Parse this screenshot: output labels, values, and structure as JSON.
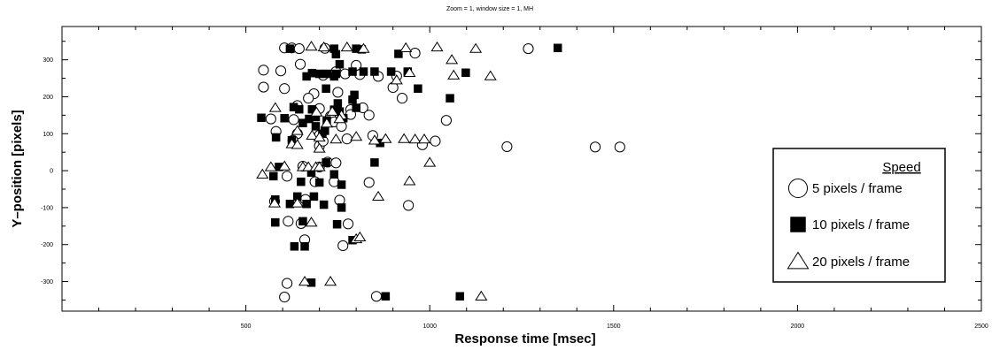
{
  "chart_data": {
    "type": "scatter",
    "title": "Zoom = 1, window size = 1, MH",
    "xlabel": "Response time [msec]",
    "ylabel": "Y–position [pixels]",
    "xlim": [
      0,
      2500
    ],
    "ylim": [
      -380,
      390
    ],
    "x_tick_labels": [
      "500",
      "1000",
      "1500",
      "2000",
      "2500"
    ],
    "y_tick_labels": [
      "-300",
      "-200",
      "-100",
      "0",
      "100",
      "200",
      "300"
    ],
    "legend_title": "Speed",
    "legend_placement": "right",
    "series": [
      {
        "name": "5 pixels / frame",
        "marker": "circle",
        "points": [
          [
            605,
            332
          ],
          [
            625,
            332
          ],
          [
            645,
            330
          ],
          [
            715,
            331
          ],
          [
            1268,
            330
          ],
          [
            960,
            318
          ],
          [
            548,
            272
          ],
          [
            595,
            270
          ],
          [
            745,
            268
          ],
          [
            770,
            262
          ],
          [
            810,
            260
          ],
          [
            860,
            255
          ],
          [
            710,
            258
          ],
          [
            648,
            288
          ],
          [
            548,
            226
          ],
          [
            605,
            222
          ],
          [
            685,
            208
          ],
          [
            670,
            196
          ],
          [
            750,
            212
          ],
          [
            900,
            225
          ],
          [
            910,
            256
          ],
          [
            800,
            285
          ],
          [
            640,
            176
          ],
          [
            700,
            168
          ],
          [
            785,
            165
          ],
          [
            818,
            170
          ],
          [
            568,
            140
          ],
          [
            630,
            138
          ],
          [
            730,
            147
          ],
          [
            785,
            152
          ],
          [
            740,
            132
          ],
          [
            760,
            120
          ],
          [
            1045,
            136
          ],
          [
            925,
            196
          ],
          [
            835,
            150
          ],
          [
            582,
            106
          ],
          [
            640,
            100
          ],
          [
            700,
            96
          ],
          [
            775,
            86
          ],
          [
            845,
            95
          ],
          [
            1015,
            80
          ],
          [
            980,
            70
          ],
          [
            1210,
            65
          ],
          [
            1450,
            64
          ],
          [
            1517,
            64
          ],
          [
            628,
            82
          ],
          [
            700,
            67
          ],
          [
            710,
            80
          ],
          [
            722,
            23
          ],
          [
            655,
            12
          ],
          [
            700,
            10
          ],
          [
            612,
            -15
          ],
          [
            745,
            21
          ],
          [
            688,
            -30
          ],
          [
            740,
            -30
          ],
          [
            835,
            -32
          ],
          [
            942,
            -94
          ],
          [
            578,
            -83
          ],
          [
            662,
            -78
          ],
          [
            755,
            -80
          ],
          [
            615,
            -137
          ],
          [
            650,
            -143
          ],
          [
            778,
            -144
          ],
          [
            660,
            -187
          ],
          [
            764,
            -203
          ],
          [
            612,
            -305
          ],
          [
            855,
            -340
          ],
          [
            605,
            -342
          ]
        ]
      },
      {
        "name": "10 pixels / frame",
        "marker": "square",
        "points": [
          [
            1348,
            332
          ],
          [
            620,
            330
          ],
          [
            740,
            330
          ],
          [
            800,
            330
          ],
          [
            815,
            328
          ],
          [
            745,
            315
          ],
          [
            915,
            316
          ],
          [
            755,
            288
          ],
          [
            680,
            264
          ],
          [
            700,
            262
          ],
          [
            720,
            262
          ],
          [
            745,
            262
          ],
          [
            790,
            268
          ],
          [
            820,
            268
          ],
          [
            850,
            268
          ],
          [
            895,
            268
          ],
          [
            940,
            268
          ],
          [
            1098,
            265
          ],
          [
            665,
            255
          ],
          [
            740,
            255
          ],
          [
            718,
            222
          ],
          [
            968,
            222
          ],
          [
            795,
            205
          ],
          [
            1055,
            196
          ],
          [
            790,
            192
          ],
          [
            750,
            182
          ],
          [
            630,
            172
          ],
          [
            645,
            166
          ],
          [
            680,
            166
          ],
          [
            740,
            165
          ],
          [
            800,
            170
          ],
          [
            755,
            160
          ],
          [
            542,
            143
          ],
          [
            605,
            142
          ],
          [
            672,
            140
          ],
          [
            690,
            145
          ],
          [
            765,
            142
          ],
          [
            720,
            136
          ],
          [
            655,
            129
          ],
          [
            690,
            120
          ],
          [
            715,
            108
          ],
          [
            708,
            100
          ],
          [
            582,
            90
          ],
          [
            625,
            82
          ],
          [
            865,
            75
          ],
          [
            590,
            10
          ],
          [
            718,
            22
          ],
          [
            850,
            22
          ],
          [
            678,
            -5
          ],
          [
            740,
            -10
          ],
          [
            575,
            -15
          ],
          [
            650,
            -30
          ],
          [
            700,
            -32
          ],
          [
            685,
            -70
          ],
          [
            760,
            -38
          ],
          [
            580,
            -78
          ],
          [
            640,
            -70
          ],
          [
            620,
            -90
          ],
          [
            665,
            -90
          ],
          [
            712,
            -92
          ],
          [
            760,
            -100
          ],
          [
            580,
            -140
          ],
          [
            655,
            -137
          ],
          [
            748,
            -145
          ],
          [
            790,
            -188
          ],
          [
            632,
            -205
          ],
          [
            660,
            -205
          ],
          [
            678,
            -303
          ],
          [
            880,
            -340
          ],
          [
            1082,
            -340
          ]
        ]
      },
      {
        "name": "20 pixels / frame",
        "marker": "triangle",
        "points": [
          [
            678,
            336
          ],
          [
            712,
            334
          ],
          [
            775,
            334
          ],
          [
            820,
            330
          ],
          [
            935,
            332
          ],
          [
            1020,
            334
          ],
          [
            1125,
            330
          ],
          [
            1060,
            300
          ],
          [
            1165,
            256
          ],
          [
            1065,
            258
          ],
          [
            910,
            245
          ],
          [
            945,
            265
          ],
          [
            580,
            170
          ],
          [
            692,
            158
          ],
          [
            735,
            160
          ],
          [
            760,
            150
          ],
          [
            755,
            140
          ],
          [
            720,
            128
          ],
          [
            640,
            108
          ],
          [
            680,
            95
          ],
          [
            700,
            90
          ],
          [
            745,
            85
          ],
          [
            800,
            92
          ],
          [
            850,
            82
          ],
          [
            880,
            86
          ],
          [
            930,
            86
          ],
          [
            960,
            85
          ],
          [
            985,
            85
          ],
          [
            625,
            72
          ],
          [
            640,
            70
          ],
          [
            700,
            60
          ],
          [
            1000,
            22
          ],
          [
            568,
            10
          ],
          [
            605,
            12
          ],
          [
            655,
            10
          ],
          [
            670,
            10
          ],
          [
            690,
            10
          ],
          [
            700,
            10
          ],
          [
            545,
            -10
          ],
          [
            945,
            -28
          ],
          [
            860,
            -70
          ],
          [
            578,
            -88
          ],
          [
            640,
            -88
          ],
          [
            678,
            -140
          ],
          [
            800,
            -185
          ],
          [
            810,
            -180
          ],
          [
            660,
            -300
          ],
          [
            730,
            -300
          ],
          [
            1140,
            -340
          ]
        ]
      }
    ]
  }
}
